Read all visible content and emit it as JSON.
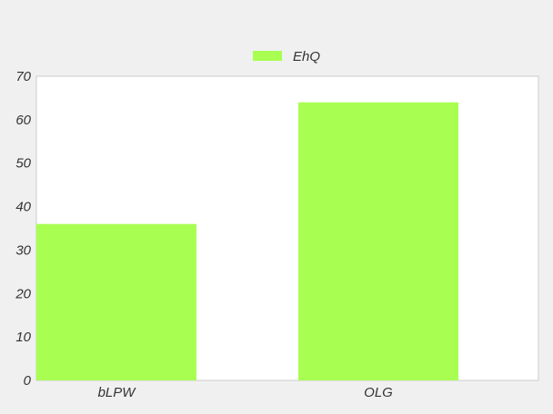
{
  "chart_data": {
    "type": "bar",
    "categories": [
      "bLPW",
      "OLG"
    ],
    "series": [
      {
        "name": "EhQ",
        "values": [
          36,
          64
        ],
        "color": "#a8ff52"
      }
    ],
    "yticks": [
      "0",
      "10",
      "20",
      "30",
      "40",
      "50",
      "60",
      "70"
    ],
    "ylim": [
      0,
      70
    ],
    "grid": false,
    "legend_position": "top-center"
  }
}
